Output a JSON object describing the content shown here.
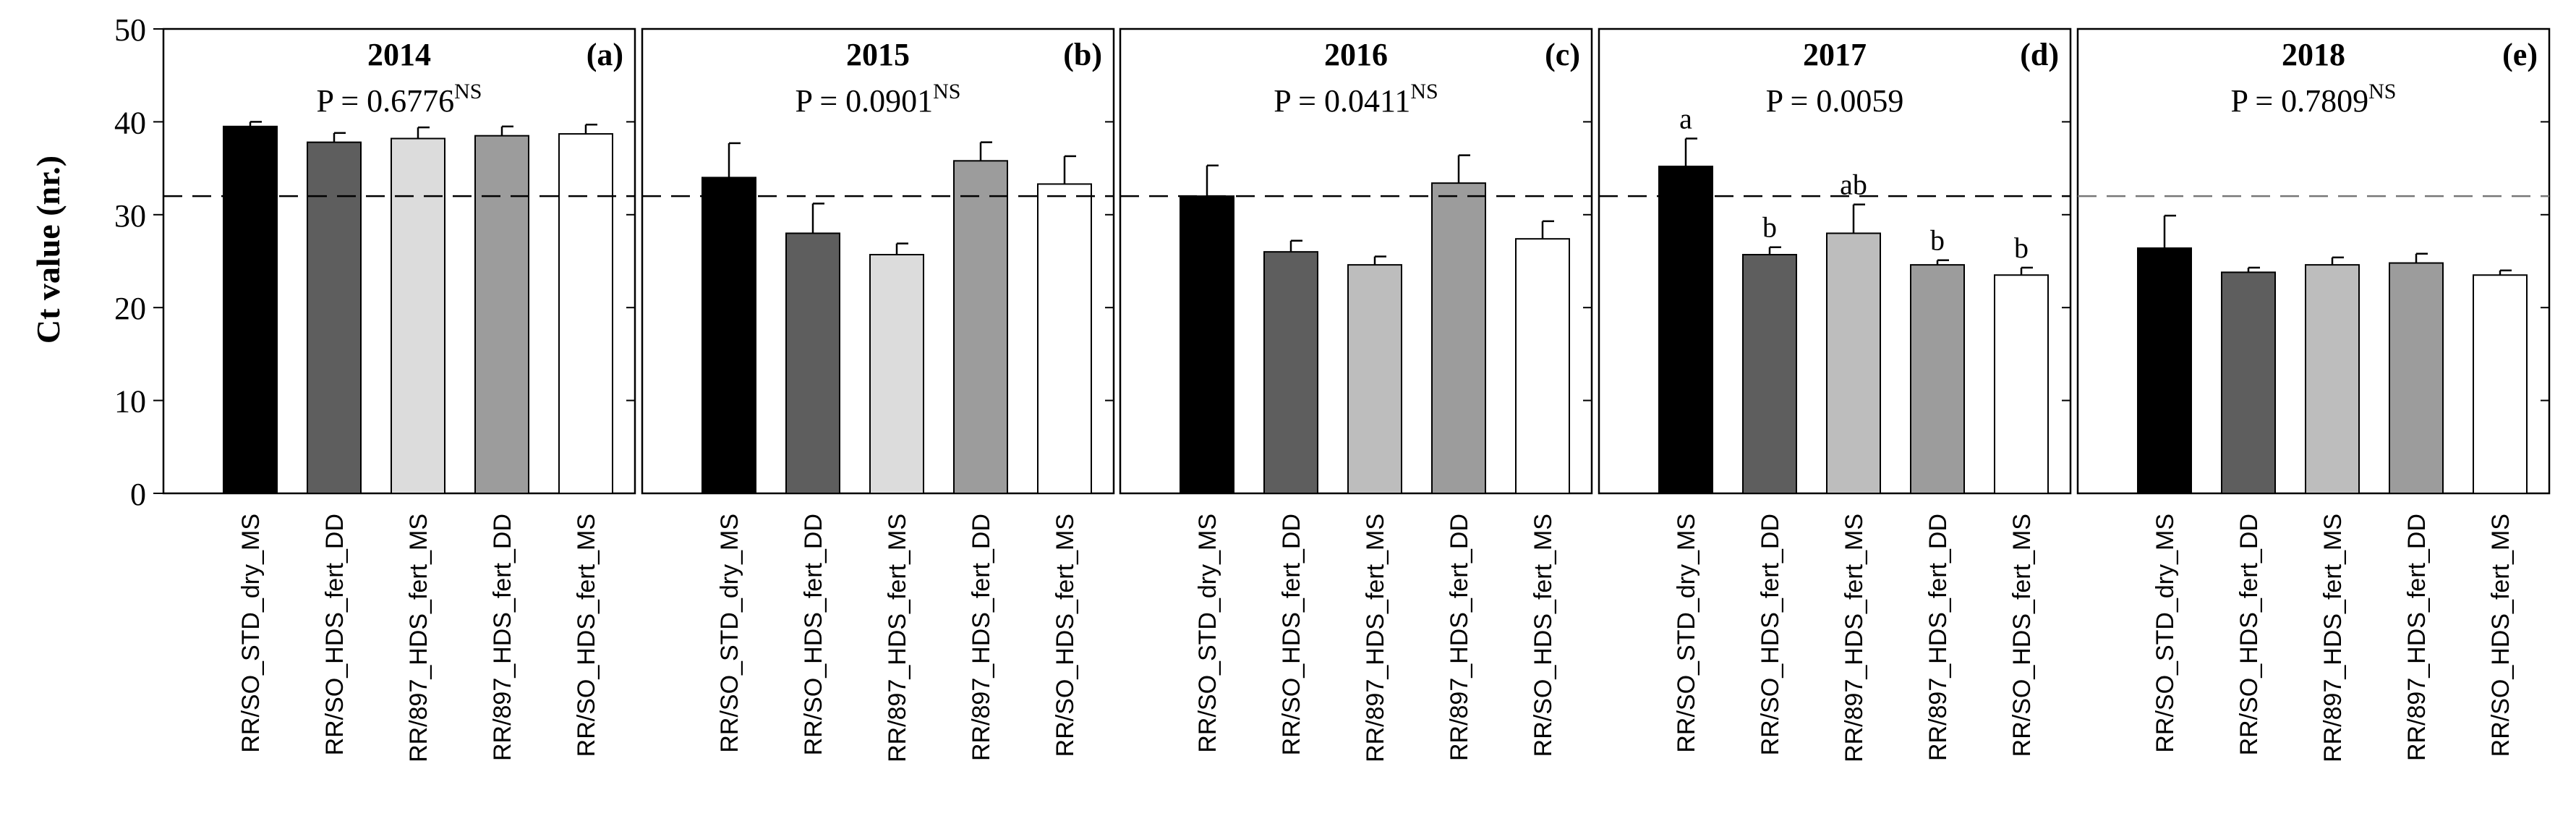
{
  "chart_data": {
    "type": "bar",
    "ylabel": "Ct value (nr.)",
    "ylim": [
      0,
      50
    ],
    "yticks": [
      0,
      10,
      20,
      30,
      40,
      50
    ],
    "threshold": 32,
    "categories": [
      "RR/SO_STD_dry_MS",
      "RR/SO_HDS_fert_DD",
      "RR/897_HDS_fert_MS",
      "RR/897_HDS_fert_DD",
      "RR/SO_HDS_fert_MS"
    ],
    "panels": [
      {
        "year": "2014",
        "tag": "(a)",
        "p_text": "P = 0.6776",
        "p_sup": "NS",
        "values": [
          39.5,
          37.8,
          38.2,
          38.5,
          38.7
        ],
        "errors": [
          0.5,
          1.0,
          1.2,
          1.0,
          1.0
        ],
        "letters": [
          "",
          "",
          "",
          "",
          ""
        ],
        "colors": [
          "#000000",
          "#5e5e5e",
          "#dcdcdc",
          "#9c9c9c",
          "#ffffff"
        ]
      },
      {
        "year": "2015",
        "tag": "(b)",
        "p_text": "P = 0.0901",
        "p_sup": "NS",
        "values": [
          34.0,
          28.0,
          25.7,
          35.8,
          33.3
        ],
        "errors": [
          3.7,
          3.2,
          1.2,
          2.0,
          3.0
        ],
        "letters": [
          "",
          "",
          "",
          "",
          ""
        ],
        "colors": [
          "#000000",
          "#5e5e5e",
          "#dcdcdc",
          "#9c9c9c",
          "#ffffff"
        ]
      },
      {
        "year": "2016",
        "tag": "(c)",
        "p_text": "P = 0.0411",
        "p_sup": "NS",
        "values": [
          32.0,
          26.0,
          24.6,
          33.4,
          27.4
        ],
        "errors": [
          3.3,
          1.2,
          0.9,
          3.0,
          1.9
        ],
        "letters": [
          "",
          "",
          "",
          "",
          ""
        ],
        "colors": [
          "#000000",
          "#5e5e5e",
          "#bdbdbd",
          "#9c9c9c",
          "#ffffff"
        ]
      },
      {
        "year": "2017",
        "tag": "(d)",
        "p_text": "P = 0.0059",
        "p_sup": "",
        "values": [
          35.2,
          25.7,
          28.0,
          24.6,
          23.5
        ],
        "errors": [
          3.0,
          0.8,
          3.1,
          0.5,
          0.8
        ],
        "letters": [
          "a",
          "b",
          "ab",
          "b",
          "b"
        ],
        "colors": [
          "#000000",
          "#5e5e5e",
          "#bdbdbd",
          "#9c9c9c",
          "#ffffff"
        ]
      },
      {
        "year": "2018",
        "tag": "(e)",
        "p_text": "P = 0.7809",
        "p_sup": "NS",
        "values": [
          26.4,
          23.8,
          24.6,
          24.8,
          23.5
        ],
        "errors": [
          3.5,
          0.5,
          0.8,
          1.0,
          0.5
        ],
        "letters": [
          "",
          "",
          "",
          "",
          ""
        ],
        "colors": [
          "#000000",
          "#5e5e5e",
          "#bdbdbd",
          "#9c9c9c",
          "#ffffff"
        ]
      }
    ]
  }
}
